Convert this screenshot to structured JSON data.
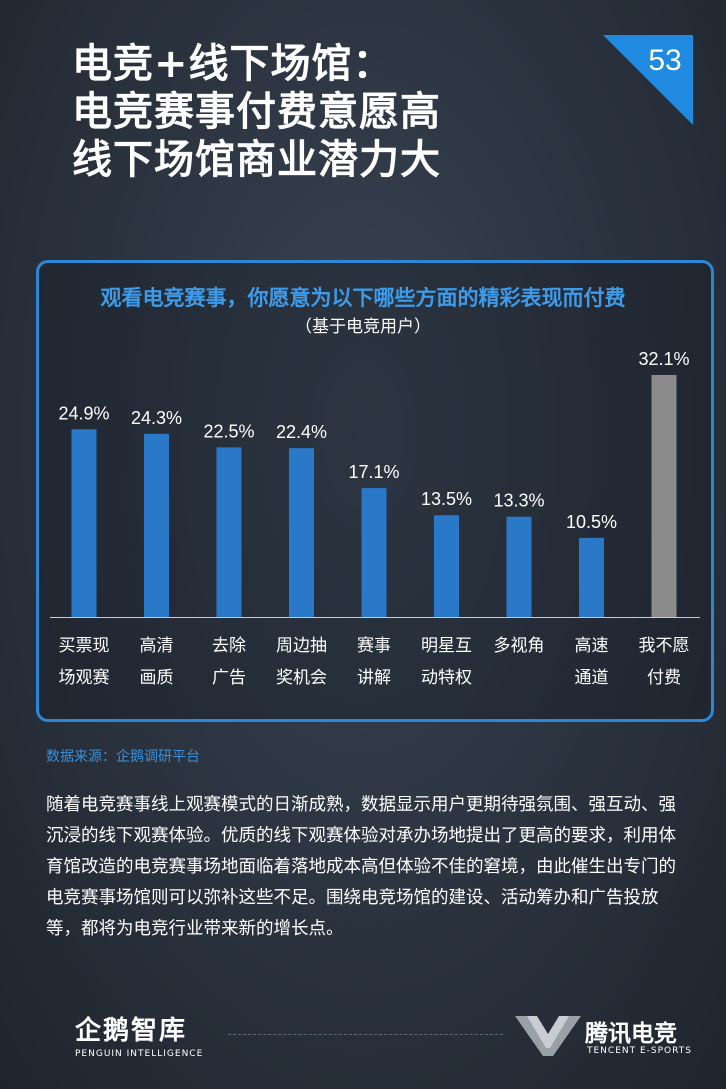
{
  "header": {
    "title_lines": [
      "电竞+线下场馆：",
      "电竞赛事付费意愿高",
      "线下场馆商业潜力大"
    ],
    "page_number": "53"
  },
  "chart_data": {
    "type": "bar",
    "title": "观看电竞赛事，你愿意为以下哪些方面的精彩表现而付费",
    "subtitle": "（基于电竞用户）",
    "categories": [
      [
        "买票现",
        "场观赛"
      ],
      [
        "高清",
        "画质"
      ],
      [
        "去除",
        "广告"
      ],
      [
        "周边抽",
        "奖机会"
      ],
      [
        "赛事",
        "讲解"
      ],
      [
        "明星互",
        "动特权"
      ],
      [
        "多视角"
      ],
      [
        "高速",
        "通道"
      ],
      [
        "我不愿",
        "付费"
      ]
    ],
    "values": [
      24.9,
      24.3,
      22.5,
      22.4,
      17.1,
      13.5,
      13.3,
      10.5,
      32.1
    ],
    "value_labels": [
      "24.9%",
      "24.3%",
      "22.5%",
      "22.4%",
      "17.1%",
      "13.5%",
      "13.3%",
      "10.5%",
      "32.1%"
    ],
    "colors": [
      "#2a78c8",
      "#2a78c8",
      "#2a78c8",
      "#2a78c8",
      "#2a78c8",
      "#2a78c8",
      "#2a78c8",
      "#2a78c8",
      "#8b8b8b"
    ],
    "ylim": [
      0,
      32.1
    ],
    "grid": false
  },
  "source": "数据来源：企鹅调研平台",
  "body_text": "随着电竞赛事线上观赛模式的日渐成熟，数据显示用户更期待强氛围、强互动、强沉浸的线下观赛体验。优质的线下观赛体验对承办场地提出了更高的要求，利用体育馆改造的电竞赛事场地面临着落地成本高但体验不佳的窘境，由此催生出专门的电竞赛事场馆则可以弥补这些不足。围绕电竞场馆的建设、活动筹办和广告投放等，都将为电竞行业带来新的增长点。",
  "footer": {
    "left_logo": "企鹅智库",
    "left_logo_sub": "PENGUIN INTELLIGENCE",
    "right_logo": "腾讯电竞",
    "right_logo_sub": "TENCENT E-SPORTS"
  }
}
